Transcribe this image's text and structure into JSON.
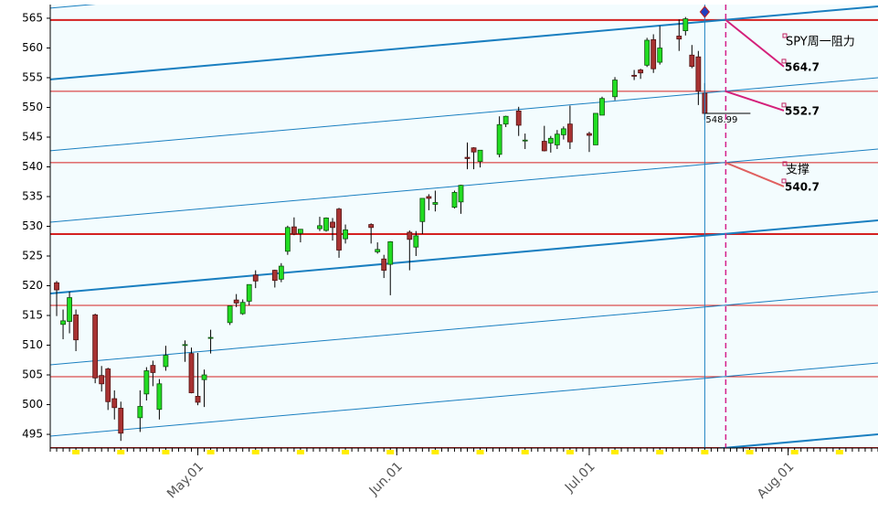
{
  "chart_data": {
    "type": "candlestick",
    "x": [
      "04-09",
      "04-10",
      "04-11",
      "04-12",
      "04-15",
      "04-16",
      "04-17",
      "04-18",
      "04-19",
      "04-22",
      "04-23",
      "04-24",
      "04-25",
      "04-26",
      "04-29",
      "04-30",
      "05-01",
      "05-02",
      "05-03",
      "05-06",
      "05-07",
      "05-08",
      "05-09",
      "05-10",
      "05-13",
      "05-14",
      "05-15",
      "05-16",
      "05-17",
      "05-20",
      "05-21",
      "05-22",
      "05-23",
      "05-24",
      "05-28",
      "05-29",
      "05-30",
      "05-31",
      "06-03",
      "06-04",
      "06-05",
      "06-06",
      "06-07",
      "06-10",
      "06-11",
      "06-12",
      "06-13",
      "06-14",
      "06-17",
      "06-18",
      "06-20",
      "06-21",
      "06-24",
      "06-25",
      "06-26",
      "06-27",
      "06-28",
      "07-01",
      "07-02",
      "07-03",
      "07-05",
      "07-08",
      "07-09",
      "07-10",
      "07-11",
      "07-12",
      "07-15",
      "07-16",
      "07-17",
      "07-18",
      "07-19"
    ],
    "open": [
      520.5,
      513.5,
      514.0,
      515.1,
      515.1,
      504.9,
      506.0,
      501.0,
      499.4,
      497.8,
      501.8,
      506.6,
      499.2,
      506.4,
      510.1,
      508.6,
      501.4,
      504.2,
      511.2,
      513.8,
      517.6,
      515.3,
      517.4,
      521.8,
      522.6,
      521.1,
      525.8,
      529.9,
      528.8,
      529.6,
      529.3,
      530.7,
      532.9,
      527.9,
      530.3,
      525.7,
      524.5,
      523.6,
      529.0,
      526.5,
      530.8,
      535.0,
      533.7,
      533.2,
      534.1,
      541.6,
      543.2,
      540.9,
      542.1,
      547.2,
      549.4,
      544.4,
      544.3,
      544.0,
      543.7,
      545.4,
      547.2,
      545.6,
      543.7,
      548.7,
      551.8,
      555.4,
      556.3,
      557.1,
      561.4,
      557.6,
      562.0,
      562.9,
      558.8,
      558.5,
      552.4
    ],
    "high": [
      520.8,
      516.0,
      519.0,
      516.0,
      515.3,
      506.5,
      506.2,
      502.4,
      500.5,
      502.4,
      506.3,
      507.4,
      504.3,
      509.9,
      510.8,
      509.6,
      508.7,
      505.9,
      512.6,
      516.6,
      518.6,
      517.7,
      520.2,
      522.6,
      522.7,
      523.8,
      530.1,
      531.5,
      529.5,
      531.6,
      531.5,
      531.4,
      533.1,
      530.3,
      530.5,
      527.3,
      525.2,
      527.5,
      529.3,
      529.2,
      534.7,
      535.4,
      536.0,
      536.0,
      537.0,
      544.1,
      543.3,
      542.8,
      548.5,
      548.6,
      550.1,
      545.6,
      546.9,
      545.2,
      546.2,
      546.8,
      550.3,
      545.9,
      549.0,
      551.8,
      555.1,
      556.3,
      556.5,
      561.7,
      562.3,
      563.7,
      564.8,
      565.2,
      560.5,
      559.5,
      554.1
    ],
    "low": [
      514.9,
      511.0,
      512.0,
      509.0,
      503.6,
      502.2,
      499.1,
      497.5,
      493.9,
      495.4,
      500.7,
      503.1,
      497.5,
      505.7,
      507.2,
      501.9,
      499.9,
      499.6,
      508.6,
      513.4,
      516.4,
      515.1,
      516.7,
      519.6,
      519.7,
      520.6,
      525.2,
      528.5,
      527.3,
      529.2,
      529.1,
      527.6,
      524.7,
      527.1,
      527.1,
      525.4,
      521.3,
      518.4,
      522.6,
      525.0,
      528.7,
      532.7,
      532.5,
      533.0,
      532.1,
      539.6,
      539.6,
      539.9,
      541.6,
      546.7,
      545.2,
      543.0,
      542.6,
      542.4,
      543.0,
      544.6,
      543.0,
      542.5,
      543.7,
      548.7,
      551.2,
      554.6,
      554.8,
      556.8,
      555.8,
      557.2,
      559.5,
      562.1,
      556.6,
      550.4,
      547.9
    ],
    "close": [
      519.3,
      514.1,
      518.0,
      510.9,
      504.5,
      503.5,
      500.5,
      499.5,
      495.2,
      499.7,
      505.7,
      505.4,
      503.5,
      508.3,
      510.1,
      502.0,
      500.4,
      505.0,
      511.3,
      516.6,
      517.1,
      517.2,
      520.2,
      520.8,
      520.9,
      523.3,
      529.8,
      528.7,
      529.5,
      530.1,
      531.4,
      529.8,
      526.0,
      529.4,
      529.8,
      526.1,
      522.6,
      527.4,
      527.8,
      528.4,
      534.7,
      534.7,
      534.0,
      535.7,
      536.9,
      541.4,
      542.5,
      542.8,
      547.1,
      548.5,
      547.0,
      544.5,
      542.7,
      544.8,
      545.5,
      546.4,
      544.2,
      545.3,
      549.0,
      551.5,
      554.6,
      555.3,
      555.8,
      561.3,
      556.5,
      559.99,
      561.5,
      564.9,
      556.9,
      552.7,
      548.99
    ],
    "up_color": "#22dd22",
    "down_color": "#a83232",
    "xlim": [
      "04-08",
      "08-15"
    ],
    "xticks": [
      {
        "value": "05-01",
        "label": "May.01"
      },
      {
        "value": "06-01",
        "label": "Jun.01"
      },
      {
        "value": "07-01",
        "label": "Jul.01"
      },
      {
        "value": "08-01",
        "label": "Aug.01"
      }
    ],
    "ylim": [
      492.7,
      567.3
    ],
    "yticks": [
      495,
      500,
      505,
      510,
      515,
      520,
      525,
      530,
      535,
      540,
      545,
      550,
      555,
      560,
      565
    ],
    "levels": [
      {
        "value": 564.7,
        "thick": true,
        "label": true
      },
      {
        "value": 552.7,
        "thick": false,
        "label": true
      },
      {
        "value": 540.7,
        "thick": false,
        "label": true
      },
      {
        "value": 528.7,
        "thick": true,
        "label": false
      },
      {
        "value": 516.7,
        "thick": false,
        "label": false
      },
      {
        "value": 504.7,
        "thick": false,
        "label": false
      },
      {
        "value": 492.7,
        "thick": true,
        "label": false
      }
    ],
    "level_color": "#d42020",
    "channel": [
      {
        "start": 566.7,
        "end": 579.0,
        "thick": false
      },
      {
        "start": 554.7,
        "end": 567.0,
        "thick": true
      },
      {
        "start": 542.7,
        "end": 555.0,
        "thick": false
      },
      {
        "start": 530.7,
        "end": 543.0,
        "thick": false
      },
      {
        "start": 518.7,
        "end": 531.0,
        "thick": true
      },
      {
        "start": 506.7,
        "end": 519.0,
        "thick": false
      },
      {
        "start": 494.7,
        "end": 507.0,
        "thick": false
      },
      {
        "start": 482.7,
        "end": 495.0,
        "thick": true
      }
    ],
    "channel_color": "#1a7fc0",
    "annotations": [
      "SPY周一阻力",
      "支撑"
    ]
  }
}
